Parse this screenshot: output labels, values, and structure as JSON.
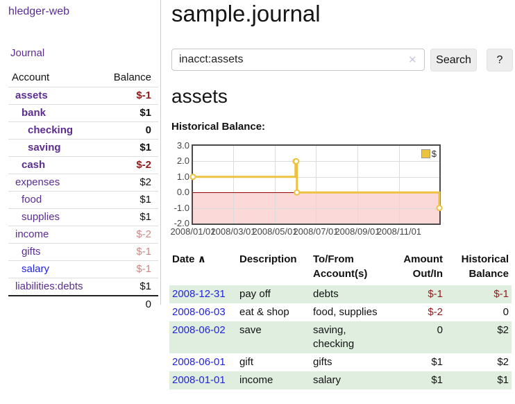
{
  "colors": {
    "link_visited_purple": "#5b2d91",
    "link_blue": "#2323dc",
    "negative_strong_red": "#8e1c1c",
    "negative_soft_red": "#c98989",
    "row_shade_green": "#dfeedf",
    "chart_line_yellow": "#edc240",
    "chart_negative_fill_pink": "#fbd9d9",
    "chart_zero_line_red": "#8b0000"
  },
  "sidebar": {
    "brand": "hledger-web",
    "journal_link": "Journal",
    "accounts": {
      "col_account": "Account",
      "col_balance": "Balance",
      "rows": [
        {
          "name": "assets",
          "indent": 1,
          "bold": true,
          "balance": "$-1",
          "neg": "strong",
          "link": "visited"
        },
        {
          "name": "bank",
          "indent": 2,
          "bold": true,
          "balance": "$1",
          "neg": "none",
          "link": "visited"
        },
        {
          "name": "checking",
          "indent": 3,
          "bold": true,
          "balance": "0",
          "neg": "none",
          "link": "visited"
        },
        {
          "name": "saving",
          "indent": 3,
          "bold": true,
          "balance": "$1",
          "neg": "none",
          "link": "visited"
        },
        {
          "name": "cash",
          "indent": 2,
          "bold": true,
          "balance": "$-2",
          "neg": "strong",
          "link": "visited"
        },
        {
          "name": "expenses",
          "indent": 1,
          "bold": false,
          "balance": "$2",
          "neg": "none",
          "link": "visited"
        },
        {
          "name": "food",
          "indent": 2,
          "bold": false,
          "balance": "$1",
          "neg": "none",
          "link": "visited"
        },
        {
          "name": "supplies",
          "indent": 2,
          "bold": false,
          "balance": "$1",
          "neg": "none",
          "link": "visited"
        },
        {
          "name": "income",
          "indent": 1,
          "bold": false,
          "balance": "$-2",
          "neg": "soft",
          "link": "visited"
        },
        {
          "name": "gifts",
          "indent": 2,
          "bold": false,
          "balance": "$-1",
          "neg": "soft",
          "link": "visited"
        },
        {
          "name": "salary",
          "indent": 2,
          "bold": false,
          "balance": "$-1",
          "neg": "soft",
          "link": "unvisited"
        },
        {
          "name": "liabilities:debts",
          "indent": 1,
          "bold": false,
          "balance": "$1",
          "neg": "none",
          "link": "visited"
        }
      ],
      "total": "0"
    }
  },
  "header": {
    "title": "sample.journal"
  },
  "search": {
    "query": "inacct:assets",
    "clear_icon": "✕",
    "button_label": "Search",
    "help_label": "?"
  },
  "account_page": {
    "heading": "assets",
    "chart_title": "Historical Balance:"
  },
  "chart_data": {
    "type": "line",
    "step": true,
    "title": "Historical Balance:",
    "series": [
      {
        "name": "$",
        "color": "#edc240",
        "points": [
          [
            "2008-01-01",
            1
          ],
          [
            "2008-06-01",
            2
          ],
          [
            "2008-06-02",
            2
          ],
          [
            "2008-06-03",
            0
          ],
          [
            "2008-12-31",
            -1
          ]
        ]
      }
    ],
    "xlim": [
      "2008-01-01",
      "2008-12-31"
    ],
    "ylim": [
      -2,
      3
    ],
    "x_ticks": [
      {
        "label": "2008/01/01",
        "date": "2008-01-01"
      },
      {
        "label": "2008/03/01",
        "date": "2008-03-01"
      },
      {
        "label": "2008/05/01",
        "date": "2008-05-01"
      },
      {
        "label": "2008/07/01",
        "date": "2008-07-01"
      },
      {
        "label": "2008/09/01",
        "date": "2008-09-01"
      },
      {
        "label": "2008/11/01",
        "date": "2008-11-01"
      }
    ],
    "y_ticks": [
      {
        "label": "3.0",
        "value": 3
      },
      {
        "label": "2.0",
        "value": 2
      },
      {
        "label": "1.0",
        "value": 1
      },
      {
        "label": "0.0",
        "value": 0
      },
      {
        "label": "-1.0",
        "value": -1
      },
      {
        "label": "-2.0",
        "value": -2
      }
    ],
    "legend": {
      "label": "$",
      "position": "top-right"
    },
    "grid": true,
    "negative_region_fill": "#fbd9d9",
    "zero_line_color": "#8b0000"
  },
  "table": {
    "sort_icon": "∧",
    "headers": {
      "date": {
        "line1": "Date"
      },
      "description": {
        "line1": "Description"
      },
      "accounts": {
        "line1": "To/From",
        "line2": "Account(s)"
      },
      "amount": {
        "line1": "Amount",
        "line2": "Out/In"
      },
      "balance": {
        "line1": "Historical",
        "line2": "Balance"
      }
    },
    "rows": [
      {
        "date": "2008-12-31",
        "description": "pay off",
        "accounts": "debts",
        "amount": "$-1",
        "amount_neg": true,
        "balance": "$-1",
        "balance_neg": true,
        "shaded": true
      },
      {
        "date": "2008-06-03",
        "description": "eat & shop",
        "accounts": "food, supplies",
        "amount": "$-2",
        "amount_neg": true,
        "balance": "0",
        "balance_neg": false,
        "shaded": false
      },
      {
        "date": "2008-06-02",
        "description": "save",
        "accounts": "saving, checking",
        "amount": "0",
        "amount_neg": false,
        "balance": "$2",
        "balance_neg": false,
        "shaded": true
      },
      {
        "date": "2008-06-01",
        "description": "gift",
        "accounts": "gifts",
        "amount": "$1",
        "amount_neg": false,
        "balance": "$2",
        "balance_neg": false,
        "shaded": false
      },
      {
        "date": "2008-01-01",
        "description": "income",
        "accounts": "salary",
        "amount": "$1",
        "amount_neg": false,
        "balance": "$1",
        "balance_neg": false,
        "shaded": true
      }
    ]
  }
}
